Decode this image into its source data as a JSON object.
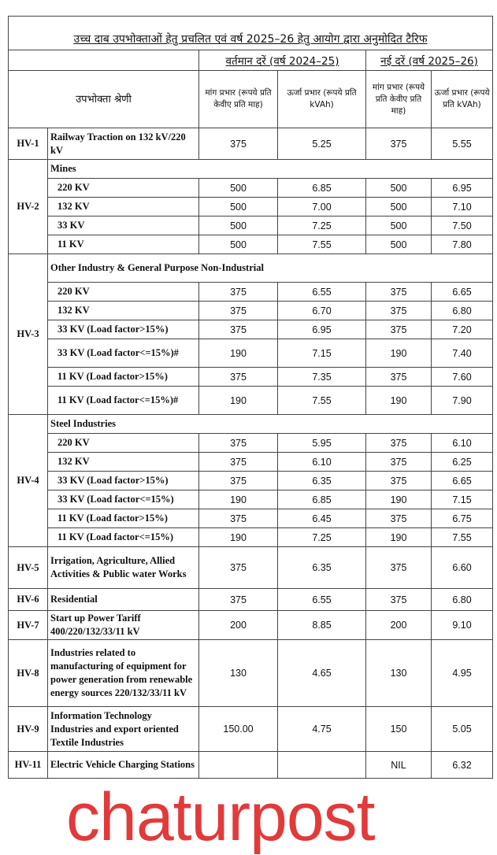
{
  "title": "उच्च दाब उपभोक्ताओं हेतु प्रचलित एवं वर्ष 2025–26 हेतु आयोग द्वारा अनुमोदित टैरिफ",
  "current_rates": "वर्तमान दरें (वर्ष 2024–25)",
  "new_rates": "नई दरें (वर्ष 2025–26)",
  "headers": {
    "category": "उपभोक्ता श्रेणी",
    "demand_current": "मांग प्रभार (रूपये प्रति केवीए प्रति माह)",
    "energy_current": "ऊर्जा प्रभार (रूपये प्रति kVAh)",
    "demand_new": "मांग प्रभार (रूपये प्रति केवीए प्रति माह)",
    "energy_new": "ऊर्जा प्रभार (रूपये प्रति kVAh)"
  },
  "groups": [
    {
      "code": "HV-1",
      "rows": [
        {
          "label": "Railway Traction on 132 kV/220 kV",
          "v": [
            "375",
            "5.25",
            "375",
            "5.55"
          ],
          "h": 40
        }
      ]
    },
    {
      "code": "HV-2",
      "heading": "Mines",
      "hh": 24,
      "rows": [
        {
          "label": "220 KV",
          "v": [
            "500",
            "6.85",
            "500",
            "6.95"
          ]
        },
        {
          "label": "132 KV",
          "v": [
            "500",
            "7.00",
            "500",
            "7.10"
          ]
        },
        {
          "label": "33 KV",
          "v": [
            "500",
            "7.25",
            "500",
            "7.50"
          ]
        },
        {
          "label": "11 KV",
          "v": [
            "500",
            "7.55",
            "500",
            "7.80"
          ]
        }
      ]
    },
    {
      "code": "HV-3",
      "heading": "Other Industry & General Purpose Non-Industrial",
      "hh": 36,
      "rows": [
        {
          "label": "220 KV",
          "v": [
            "375",
            "6.55",
            "375",
            "6.65"
          ]
        },
        {
          "label": "132 KV",
          "v": [
            "375",
            "6.70",
            "375",
            "6.80"
          ]
        },
        {
          "label": "33 KV (Load factor>15%)",
          "v": [
            "375",
            "6.95",
            "375",
            "7.20"
          ]
        },
        {
          "label": "33 KV (Load factor<=15%)#",
          "v": [
            "190",
            "7.15",
            "190",
            "7.40"
          ],
          "h": 36
        },
        {
          "label": "11 KV (Load factor>15%)",
          "v": [
            "375",
            "7.35",
            "375",
            "7.60"
          ]
        },
        {
          "label": "11 KV (Load factor<=15%)#",
          "v": [
            "190",
            "7.55",
            "190",
            "7.90"
          ],
          "h": 36
        }
      ]
    },
    {
      "code": "HV-4",
      "heading": "Steel Industries",
      "hh": 24,
      "rows": [
        {
          "label": "220 KV",
          "v": [
            "375",
            "5.95",
            "375",
            "6.10"
          ]
        },
        {
          "label": "132 KV",
          "v": [
            "375",
            "6.10",
            "375",
            "6.25"
          ]
        },
        {
          "label": "33 KV (Load factor>15%)",
          "v": [
            "375",
            "6.35",
            "375",
            "6.65"
          ]
        },
        {
          "label": "33 KV (Load factor<=15%)",
          "v": [
            "190",
            "6.85",
            "190",
            "7.15"
          ]
        },
        {
          "label": "11 KV (Load factor>15%)",
          "v": [
            "375",
            "6.45",
            "375",
            "6.75"
          ]
        },
        {
          "label": "11 KV (Load factor<=15%)",
          "v": [
            "190",
            "7.25",
            "190",
            "7.55"
          ]
        }
      ]
    },
    {
      "code": "HV-5",
      "rows": [
        {
          "label": "Irrigation, Agriculture, Allied Activities & Public water Works",
          "v": [
            "375",
            "6.35",
            "375",
            "6.60"
          ],
          "h": 53
        }
      ]
    },
    {
      "code": "HV-6",
      "rows": [
        {
          "label": "Residential",
          "v": [
            "375",
            "6.55",
            "375",
            "6.80"
          ],
          "h": 28
        }
      ]
    },
    {
      "code": "HV-7",
      "rows": [
        {
          "label": "Start up Power Tariff 400/220/132/33/11 kV",
          "v": [
            "200",
            "8.85",
            "200",
            "9.10"
          ],
          "h": 37
        }
      ]
    },
    {
      "code": "HV-8",
      "rows": [
        {
          "label": "Industries related to manufacturing of equipment for power generation from renewable energy sources 220/132/33/11 kV",
          "v": [
            "130",
            "4.65",
            "130",
            "4.95"
          ],
          "h": 85
        }
      ]
    },
    {
      "code": "HV-9",
      "rows": [
        {
          "label": "Information Technology Industries and export oriented Textile Industries",
          "v": [
            "150.00",
            "4.75",
            "150",
            "5.05"
          ],
          "h": 57
        }
      ]
    },
    {
      "code": "HV-11",
      "rows": [
        {
          "label": "Electric Vehicle Charging Stations",
          "v": [
            "",
            "",
            "NIL",
            "6.32"
          ],
          "h": 34
        }
      ]
    }
  ],
  "watermark": "chaturpost"
}
